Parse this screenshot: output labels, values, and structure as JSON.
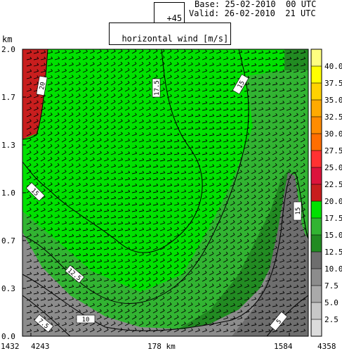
{
  "header": {
    "lead_time": "+45",
    "base": "Base: 25-02-2010  00 UTC",
    "valid": "Valid: 26-02-2010  21 UTC"
  },
  "chart_data": {
    "type": "heatmap",
    "title": "horizontal wind [m/s]",
    "ylabel": "km",
    "y_ticks": [
      "2.0",
      "1.7",
      "1.3",
      "1.0",
      "0.7",
      "0.3",
      "0.0"
    ],
    "x_ticks": [
      "1432",
      "4243",
      "178 km",
      "1584",
      "4358"
    ],
    "ylim": [
      0.0,
      2.0
    ],
    "colorbar": {
      "levels": [
        "2.5",
        "5.0",
        "7.5",
        "10.0",
        "12.5",
        "15.0",
        "17.5",
        "20.0",
        "22.5",
        "25.0",
        "27.5",
        "30.0",
        "32.5",
        "35.0",
        "37.5",
        "40.0"
      ],
      "colors": [
        "#dcdcdc",
        "#c8c8c8",
        "#aaaaaa",
        "#8c8c8c",
        "#6e6e6e",
        "#228b22",
        "#32b432",
        "#00e100",
        "#c81e1e",
        "#dc143c",
        "#ff3232",
        "#ff6e00",
        "#ff8c00",
        "#ffaa00",
        "#ffd200",
        "#ffff00",
        "#ffff80"
      ]
    },
    "contour_labels": [
      "20",
      "17.5",
      "15",
      "12.5",
      "10",
      "7.5",
      "5"
    ],
    "regions": [
      {
        "name": "gray",
        "range": "7.5-10.0"
      },
      {
        "name": "dark-green",
        "range": "12.5-15.0"
      },
      {
        "name": "mid-green",
        "range": "15.0-17.5"
      },
      {
        "name": "bright-green",
        "range": "17.5-20.0"
      },
      {
        "name": "red",
        "range": "20.0-22.5"
      }
    ]
  }
}
